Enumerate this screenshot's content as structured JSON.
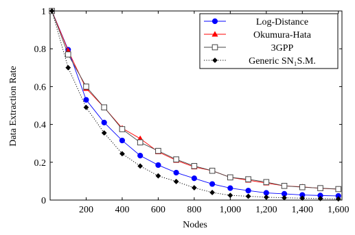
{
  "chart_data": {
    "type": "line",
    "xlabel": "Nodes",
    "ylabel": "Data Extraction Rate",
    "xlim": [
      0,
      1620
    ],
    "ylim": [
      0,
      1
    ],
    "x_ticks": [
      200,
      400,
      600,
      800,
      1000,
      1200,
      1400,
      1600
    ],
    "x_tick_labels": [
      "200",
      "400",
      "600",
      "800",
      "1,000",
      "1,200",
      "1,400",
      "1,600"
    ],
    "y_ticks": [
      0,
      0.2,
      0.4,
      0.6,
      0.8,
      1
    ],
    "y_tick_labels": [
      "0",
      "0.2",
      "0.4",
      "0.6",
      "0.8",
      "1"
    ],
    "legend_position": "top-right",
    "grid": false,
    "x": [
      10,
      100,
      200,
      300,
      400,
      500,
      600,
      700,
      800,
      900,
      1000,
      1100,
      1200,
      1300,
      1400,
      1500,
      1600
    ],
    "series": [
      {
        "name": "Log-Distance",
        "color": "#0000ff",
        "marker": "circle",
        "line": "solid",
        "values": [
          1.0,
          0.795,
          0.53,
          0.41,
          0.315,
          0.235,
          0.185,
          0.145,
          0.115,
          0.085,
          0.063,
          0.05,
          0.038,
          0.033,
          0.027,
          0.024,
          0.022
        ]
      },
      {
        "name": "Okumura-Hata",
        "color": "#ff0000",
        "marker": "triangle",
        "line": "solid",
        "values": [
          1.0,
          0.79,
          0.59,
          0.49,
          0.38,
          0.325,
          0.255,
          0.21,
          0.175,
          0.155,
          0.12,
          0.105,
          0.09,
          0.075,
          0.07,
          0.062,
          0.058
        ]
      },
      {
        "name": "3GPP",
        "color": "#444444",
        "marker": "square",
        "line": "solid",
        "values": [
          1.0,
          0.77,
          0.6,
          0.49,
          0.375,
          0.305,
          0.26,
          0.215,
          0.18,
          0.155,
          0.12,
          0.11,
          0.095,
          0.075,
          0.068,
          0.063,
          0.058
        ]
      },
      {
        "name": "Generic SN₁S.M.",
        "color": "#000000",
        "marker": "diamond",
        "line": "dotted",
        "values": [
          1.0,
          0.7,
          0.49,
          0.355,
          0.245,
          0.18,
          0.128,
          0.098,
          0.065,
          0.04,
          0.025,
          0.02,
          0.015,
          0.012,
          0.01,
          0.008,
          0.006
        ]
      }
    ]
  }
}
